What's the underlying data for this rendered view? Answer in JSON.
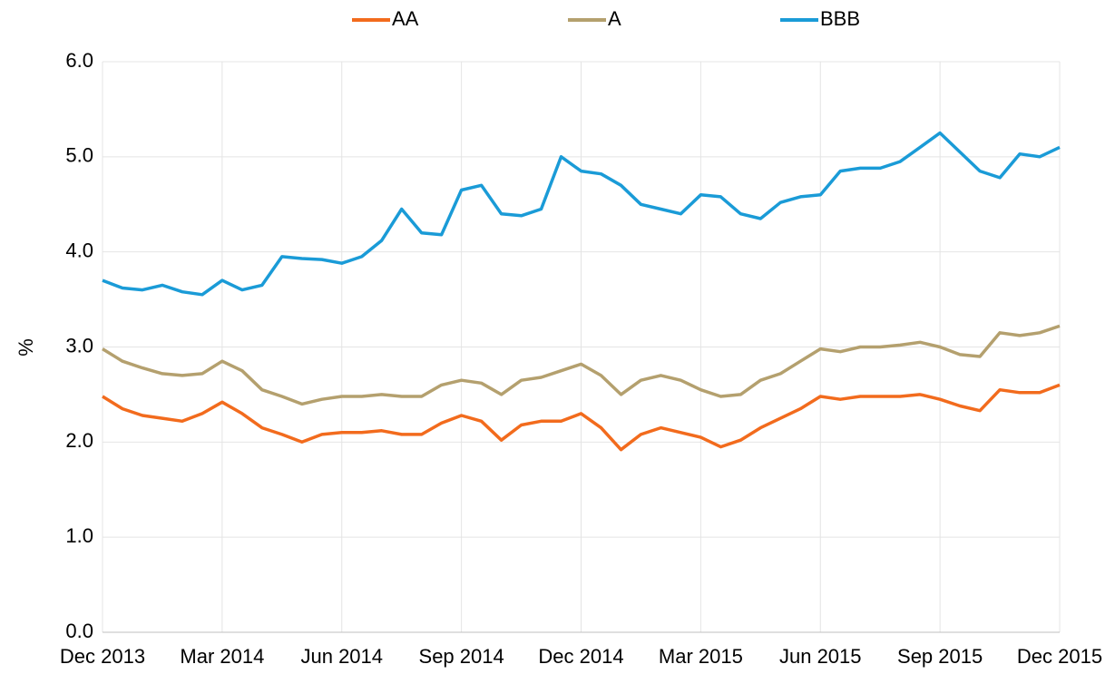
{
  "chart_data": {
    "type": "line",
    "categories": [
      "Dec 2013",
      null,
      null,
      null,
      null,
      null,
      "Mar 2014",
      null,
      null,
      null,
      null,
      null,
      "Jun 2014",
      null,
      null,
      null,
      null,
      null,
      "Sep 2014",
      null,
      null,
      null,
      null,
      null,
      "Dec 2014",
      null,
      null,
      null,
      null,
      null,
      "Mar 2015",
      null,
      null,
      null,
      null,
      null,
      "Jun 2015",
      null,
      null,
      null,
      null,
      null,
      "Sep 2015",
      null,
      null,
      null,
      null,
      null,
      "Dec 2015"
    ],
    "series": [
      {
        "name": "AA",
        "color": "#f26b1d",
        "values": [
          2.48,
          2.35,
          2.28,
          2.25,
          2.22,
          2.3,
          2.42,
          2.3,
          2.15,
          2.08,
          2.0,
          2.08,
          2.1,
          2.1,
          2.12,
          2.08,
          2.08,
          2.2,
          2.28,
          2.22,
          2.02,
          2.18,
          2.22,
          2.22,
          2.3,
          2.15,
          1.92,
          2.08,
          2.15,
          2.1,
          2.05,
          1.95,
          2.02,
          2.15,
          2.25,
          2.35,
          2.48,
          2.45,
          2.48,
          2.48,
          2.48,
          2.5,
          2.45,
          2.38,
          2.33,
          2.55,
          2.52,
          2.52,
          2.6
        ]
      },
      {
        "name": "A",
        "color": "#b4a06e",
        "values": [
          2.98,
          2.85,
          2.78,
          2.72,
          2.7,
          2.72,
          2.85,
          2.75,
          2.55,
          2.48,
          2.4,
          2.45,
          2.48,
          2.48,
          2.5,
          2.48,
          2.48,
          2.6,
          2.65,
          2.62,
          2.5,
          2.65,
          2.68,
          2.75,
          2.82,
          2.7,
          2.5,
          2.65,
          2.7,
          2.65,
          2.55,
          2.48,
          2.5,
          2.65,
          2.72,
          2.85,
          2.98,
          2.95,
          3.0,
          3.0,
          3.02,
          3.05,
          3.0,
          2.92,
          2.9,
          3.15,
          3.12,
          3.15,
          3.22
        ]
      },
      {
        "name": "BBB",
        "color": "#1a9bd7",
        "values": [
          3.7,
          3.62,
          3.6,
          3.65,
          3.58,
          3.55,
          3.7,
          3.6,
          3.65,
          3.95,
          3.93,
          3.92,
          3.88,
          3.95,
          4.12,
          4.45,
          4.2,
          4.18,
          4.65,
          4.7,
          4.4,
          4.38,
          4.45,
          5.0,
          4.85,
          4.82,
          4.7,
          4.5,
          4.45,
          4.4,
          4.6,
          4.58,
          4.4,
          4.35,
          4.52,
          4.58,
          4.6,
          4.85,
          4.88,
          4.88,
          4.95,
          5.1,
          5.25,
          5.05,
          4.85,
          4.78,
          5.03,
          5.0,
          5.1
        ]
      }
    ],
    "y_label": "%",
    "ylim": [
      0,
      6
    ],
    "yticks": [
      {
        "value": 0,
        "label": "0.0"
      },
      {
        "value": 1,
        "label": "1.0"
      },
      {
        "value": 2,
        "label": "2.0"
      },
      {
        "value": 3,
        "label": "3.0"
      },
      {
        "value": 4,
        "label": "4.0"
      },
      {
        "value": 5,
        "label": "5.0"
      },
      {
        "value": 6,
        "label": "6.0"
      }
    ],
    "grid": true,
    "legend": "top"
  }
}
